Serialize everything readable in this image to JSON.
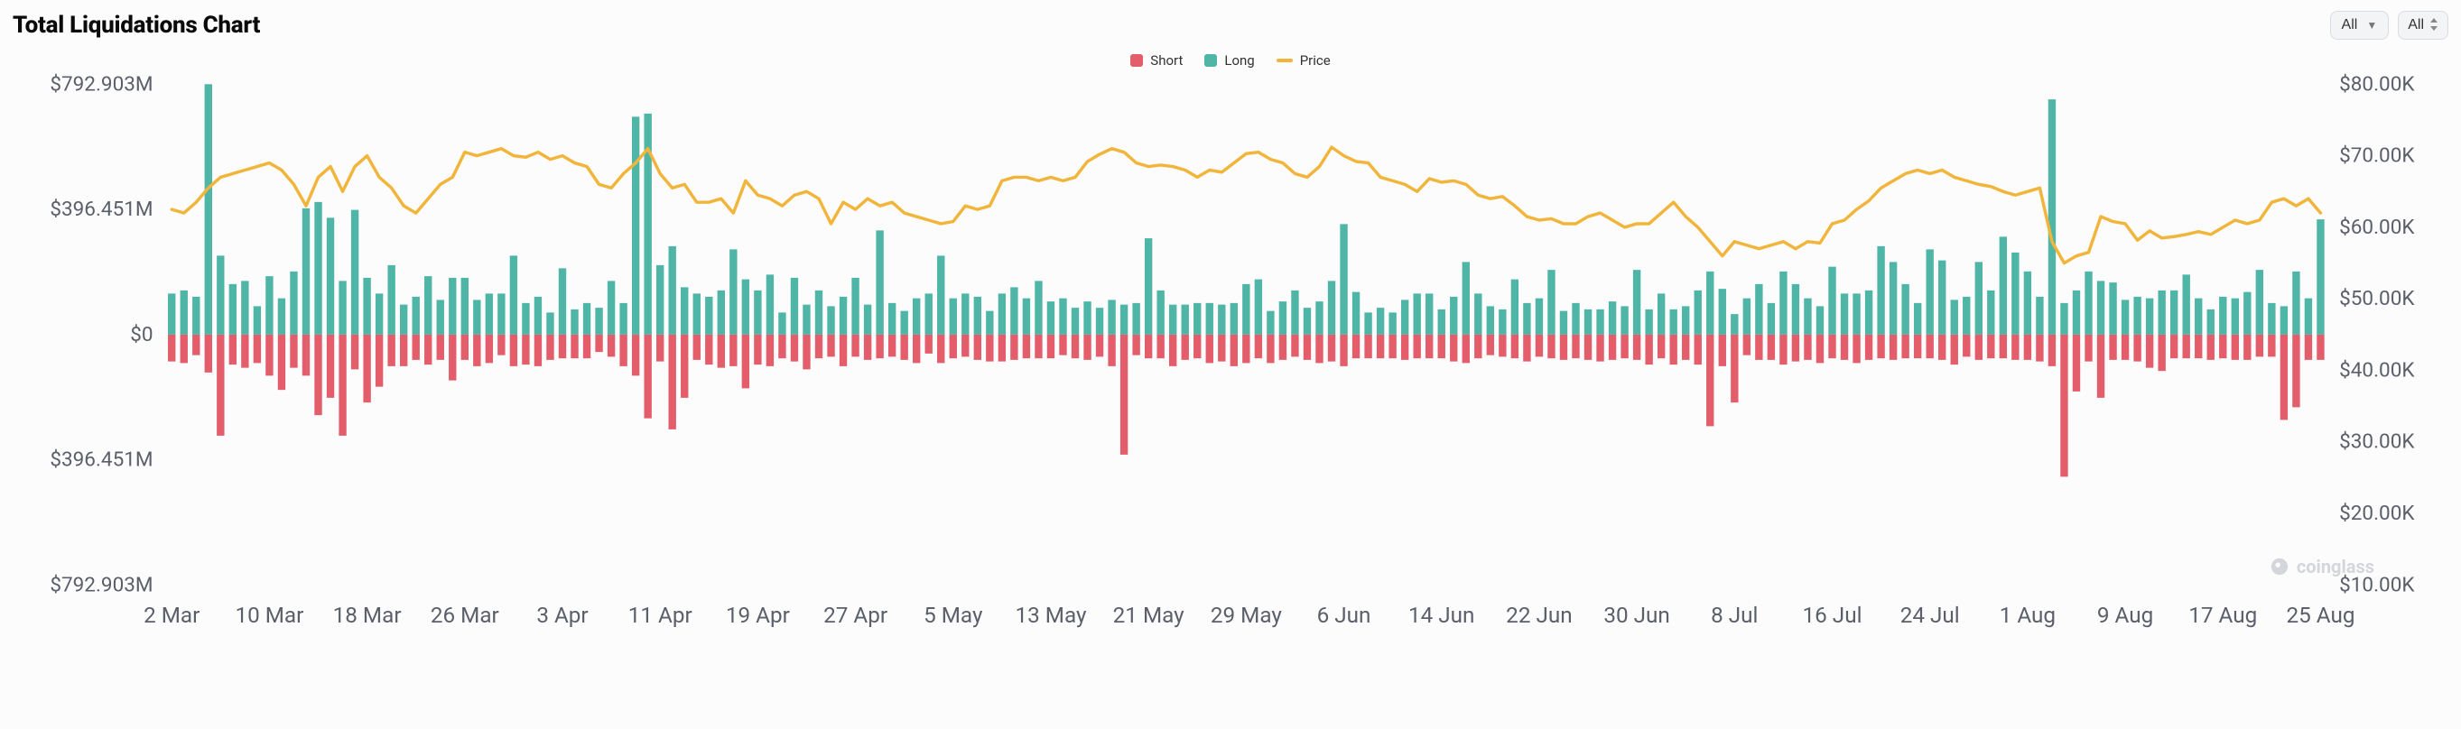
{
  "title": "Total Liquidations Chart",
  "controls": {
    "primary_select": {
      "label": "All",
      "options": [
        "All"
      ]
    },
    "secondary_select": {
      "label": "All",
      "options": [
        "All"
      ]
    }
  },
  "legend": {
    "short": {
      "label": "Short",
      "color": "#e35d6a"
    },
    "long": {
      "label": "Long",
      "color": "#4fb5a6"
    },
    "price": {
      "label": "Price",
      "color": "#f2b53b"
    }
  },
  "watermark": {
    "text": "coinglass"
  },
  "chart": {
    "type": "bar+line",
    "background_color": "#fcfcfd",
    "grid_color": "#ffffff",
    "tick_color": "#5a5f6a",
    "left_axis": {
      "unit": "USD_M",
      "ticks": [
        -792.903,
        -396.451,
        0,
        396.451,
        792.903
      ],
      "tick_labels": [
        "$792.903M",
        "$396.451M",
        "$0",
        "$396.451M",
        "$792.903M"
      ],
      "fontsize": 13
    },
    "right_axis": {
      "unit": "USD_K",
      "ticks": [
        10,
        20,
        30,
        40,
        50,
        60,
        70,
        80
      ],
      "tick_labels": [
        "$10.00K",
        "$20.00K",
        "$30.00K",
        "$40.00K",
        "$50.00K",
        "$60.00K",
        "$70.00K",
        "$80.00K"
      ],
      "fontsize": 13
    },
    "x_tick_labels": [
      "2 Mar",
      "10 Mar",
      "18 Mar",
      "26 Mar",
      "3 Apr",
      "11 Apr",
      "19 Apr",
      "27 Apr",
      "5 May",
      "13 May",
      "21 May",
      "29 May",
      "6 Jun",
      "14 Jun",
      "22 Jun",
      "30 Jun",
      "8 Jul",
      "16 Jul",
      "24 Jul",
      "1 Aug",
      "9 Aug",
      "17 Aug",
      "25 Aug"
    ],
    "bar_width_ratio": 0.62,
    "colors": {
      "long": "#4fb5a6",
      "short": "#e35d6a",
      "price_line": "#f2b53b"
    },
    "line_width": 2,
    "long_values_M": [
      130,
      140,
      120,
      793,
      250,
      160,
      170,
      90,
      185,
      115,
      200,
      400,
      420,
      370,
      170,
      395,
      180,
      130,
      220,
      95,
      120,
      185,
      110,
      180,
      180,
      110,
      130,
      130,
      250,
      100,
      120,
      70,
      210,
      80,
      100,
      85,
      170,
      100,
      690,
      700,
      220,
      280,
      150,
      130,
      120,
      140,
      270,
      175,
      140,
      190,
      70,
      180,
      95,
      140,
      90,
      120,
      180,
      95,
      330,
      100,
      75,
      115,
      130,
      250,
      115,
      130,
      120,
      75,
      130,
      150,
      115,
      170,
      105,
      115,
      85,
      105,
      85,
      110,
      95,
      100,
      305,
      140,
      95,
      95,
      100,
      100,
      95,
      100,
      160,
      175,
      75,
      105,
      140,
      85,
      105,
      170,
      350,
      135,
      70,
      85,
      70,
      110,
      130,
      130,
      80,
      120,
      230,
      130,
      90,
      80,
      175,
      100,
      115,
      205,
      75,
      100,
      80,
      80,
      105,
      90,
      205,
      80,
      130,
      80,
      90,
      140,
      200,
      145,
      65,
      115,
      160,
      100,
      200,
      160,
      115,
      90,
      215,
      130,
      130,
      140,
      280,
      230,
      160,
      100,
      270,
      235,
      110,
      120,
      230,
      140,
      310,
      260,
      200,
      120,
      745,
      100,
      140,
      200,
      170,
      165,
      110,
      120,
      115,
      140,
      140,
      190,
      115,
      80,
      120,
      115,
      135,
      205,
      100,
      90,
      200,
      115,
      365
    ],
    "short_values_M": [
      85,
      90,
      65,
      120,
      320,
      95,
      105,
      90,
      130,
      175,
      105,
      130,
      255,
      200,
      320,
      110,
      215,
      165,
      100,
      100,
      80,
      95,
      80,
      145,
      80,
      100,
      90,
      65,
      100,
      95,
      100,
      80,
      75,
      75,
      75,
      55,
      70,
      100,
      130,
      265,
      85,
      300,
      200,
      80,
      95,
      105,
      100,
      170,
      95,
      100,
      75,
      85,
      110,
      75,
      70,
      100,
      70,
      80,
      75,
      70,
      80,
      90,
      60,
      90,
      75,
      70,
      80,
      85,
      85,
      80,
      75,
      75,
      75,
      65,
      75,
      80,
      70,
      100,
      380,
      65,
      75,
      75,
      100,
      80,
      75,
      90,
      85,
      100,
      90,
      75,
      90,
      80,
      70,
      80,
      90,
      85,
      100,
      75,
      75,
      75,
      75,
      80,
      75,
      75,
      75,
      85,
      90,
      75,
      65,
      70,
      75,
      85,
      70,
      75,
      80,
      75,
      80,
      85,
      80,
      75,
      80,
      95,
      75,
      95,
      80,
      95,
      290,
      100,
      215,
      65,
      80,
      80,
      95,
      85,
      80,
      90,
      75,
      80,
      90,
      80,
      75,
      80,
      75,
      75,
      75,
      80,
      95,
      70,
      80,
      75,
      75,
      80,
      80,
      85,
      100,
      450,
      180,
      85,
      200,
      80,
      80,
      85,
      105,
      115,
      75,
      75,
      75,
      80,
      75,
      80,
      80,
      70,
      70,
      270,
      230,
      80,
      80
    ],
    "price_K": [
      62.5,
      62.0,
      63.5,
      65.5,
      67.0,
      67.5,
      68.0,
      68.5,
      69.0,
      68.0,
      66.0,
      63.0,
      67.0,
      68.5,
      65.0,
      68.5,
      70.0,
      67.0,
      65.5,
      63.0,
      62.0,
      64.0,
      66.0,
      67.0,
      70.5,
      70.0,
      70.5,
      71.0,
      70.0,
      69.8,
      70.5,
      69.5,
      70.0,
      69.0,
      68.5,
      66.0,
      65.5,
      67.5,
      69.0,
      71.0,
      67.5,
      65.5,
      66.0,
      63.5,
      63.5,
      64.0,
      62.0,
      66.5,
      64.5,
      64.0,
      63.0,
      64.5,
      65.0,
      64.0,
      60.5,
      63.5,
      62.5,
      64.0,
      63.0,
      63.5,
      62.0,
      61.5,
      61.0,
      60.5,
      60.8,
      63.0,
      62.5,
      63.0,
      66.5,
      67.0,
      67.0,
      66.5,
      67.0,
      66.5,
      67.0,
      69.2,
      70.2,
      71.0,
      70.5,
      69.0,
      68.5,
      68.7,
      68.5,
      68.0,
      67.0,
      68.0,
      67.7,
      69.0,
      70.3,
      70.5,
      69.5,
      69.0,
      67.5,
      67.0,
      68.5,
      71.2,
      70.0,
      69.2,
      69.0,
      67.0,
      66.5,
      66.0,
      65.0,
      66.8,
      66.3,
      66.5,
      66.0,
      64.5,
      64.0,
      64.3,
      63.0,
      61.5,
      61.0,
      61.2,
      60.5,
      60.5,
      61.5,
      62.0,
      61.0,
      60.0,
      60.5,
      60.5,
      62.0,
      63.5,
      61.5,
      60.0,
      58.0,
      56.0,
      58.0,
      57.5,
      57.0,
      57.5,
      58.0,
      57.0,
      58.0,
      57.8,
      60.5,
      61.0,
      62.5,
      63.7,
      65.5,
      66.5,
      67.5,
      68.0,
      67.5,
      68.0,
      67.0,
      66.5,
      66.0,
      65.7,
      65.0,
      64.5,
      65.0,
      65.5,
      58.0,
      55.0,
      56.0,
      56.5,
      61.5,
      60.8,
      60.5,
      58.2,
      59.5,
      58.5,
      58.7,
      59.0,
      59.4,
      59.0,
      60.0,
      61.0,
      60.5,
      61.0,
      63.5,
      64.0,
      63.0,
      64.0,
      62.0
    ]
  }
}
